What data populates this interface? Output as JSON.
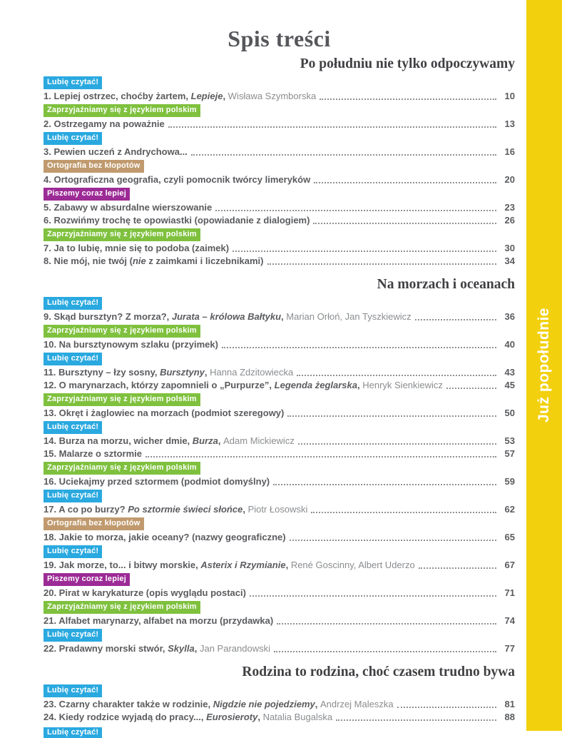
{
  "page": {
    "title": "Spis treści",
    "sidebar_label": "Już popołudnie",
    "band_color": "#f2d00e",
    "text_color": "#5a5b5e",
    "author_color": "#8a8c8f"
  },
  "tags": {
    "lubie": {
      "label": "Lubię czytać!",
      "color": "#2aa9e0"
    },
    "zaprz": {
      "label": "Zaprzyjaźniamy się z językiem polskim",
      "color": "#7fc13e"
    },
    "orto": {
      "label": "Ortografia bez kłopotów",
      "color": "#c09a6e"
    },
    "piszemy": {
      "label": "Piszemy coraz lepiej",
      "color": "#9c2b96"
    }
  },
  "bottom_partial_tag": "lubie",
  "sections": [
    {
      "heading": "Po południu nie tylko odpoczywamy",
      "entries": [
        {
          "tag": "lubie",
          "page": "10",
          "parts": [
            {
              "s": "b",
              "t": "1. Lepiej ostrzec, choćby żartem, "
            },
            {
              "s": "bi",
              "t": "Lepieje"
            },
            {
              "s": "b",
              "t": ", "
            },
            {
              "s": "r",
              "t": "Wisława Szymborska"
            }
          ]
        },
        {
          "tag": "zaprz",
          "page": "13",
          "parts": [
            {
              "s": "b",
              "t": "2. Ostrzegamy na poważnie"
            }
          ]
        },
        {
          "tag": "lubie",
          "page": "16",
          "parts": [
            {
              "s": "b",
              "t": "3. Pewien uczeń z Andrychowa..."
            }
          ]
        },
        {
          "tag": "orto",
          "page": "20",
          "parts": [
            {
              "s": "b",
              "t": "4. Ortograficzna geografia, czyli pomocnik twórcy limeryków"
            }
          ]
        },
        {
          "tag": "piszemy",
          "page": "23",
          "parts": [
            {
              "s": "b",
              "t": "5. Zabawy w absurdalne wierszowanie"
            }
          ]
        },
        {
          "tag": null,
          "page": "26",
          "parts": [
            {
              "s": "b",
              "t": "6. Rozwińmy trochę te opowiastki (opowiadanie z dialogiem)"
            }
          ]
        },
        {
          "tag": "zaprz",
          "page": "30",
          "parts": [
            {
              "s": "b",
              "t": "7. Ja to lubię, mnie się to podoba (zaimek)"
            }
          ]
        },
        {
          "tag": null,
          "page": "34",
          "parts": [
            {
              "s": "b",
              "t": "8. Nie mój, nie twój ("
            },
            {
              "s": "bi",
              "t": "nie"
            },
            {
              "s": "b",
              "t": " z zaimkami i liczebnikami)"
            }
          ]
        }
      ]
    },
    {
      "heading": "Na morzach i oceanach",
      "entries": [
        {
          "tag": "lubie",
          "page": "36",
          "parts": [
            {
              "s": "b",
              "t": "9. Skąd bursztyn? Z morza?, "
            },
            {
              "s": "bi",
              "t": "Jurata – królowa Bałtyku"
            },
            {
              "s": "b",
              "t": ", "
            },
            {
              "s": "r",
              "t": "Marian Orłoń, Jan Tyszkiewicz"
            }
          ]
        },
        {
          "tag": "zaprz",
          "page": "40",
          "parts": [
            {
              "s": "b",
              "t": "10. Na bursztynowym szlaku (przyimek)"
            }
          ]
        },
        {
          "tag": "lubie",
          "page": "43",
          "parts": [
            {
              "s": "b",
              "t": "11. Bursztyny – łzy sosny, "
            },
            {
              "s": "bi",
              "t": "Bursztyny"
            },
            {
              "s": "b",
              "t": ", "
            },
            {
              "s": "r",
              "t": "Hanna Zdzitowiecka"
            }
          ]
        },
        {
          "tag": null,
          "page": "45",
          "parts": [
            {
              "s": "b",
              "t": "12. O marynarzach, którzy zapomnieli o „Purpurze”, "
            },
            {
              "s": "bi",
              "t": "Legenda żeglarska"
            },
            {
              "s": "b",
              "t": ", "
            },
            {
              "s": "r",
              "t": "Henryk Sienkiewicz"
            }
          ]
        },
        {
          "tag": "zaprz",
          "page": "50",
          "parts": [
            {
              "s": "b",
              "t": "13. Okręt i żaglowiec na morzach (podmiot szeregowy)"
            }
          ]
        },
        {
          "tag": "lubie",
          "page": "53",
          "parts": [
            {
              "s": "b",
              "t": "14. Burza na morzu, wicher dmie, "
            },
            {
              "s": "bi",
              "t": "Burza"
            },
            {
              "s": "b",
              "t": ", "
            },
            {
              "s": "r",
              "t": "Adam Mickiewicz"
            }
          ]
        },
        {
          "tag": null,
          "page": "57",
          "parts": [
            {
              "s": "b",
              "t": "15. Malarze o sztormie"
            }
          ]
        },
        {
          "tag": "zaprz",
          "page": "59",
          "parts": [
            {
              "s": "b",
              "t": "16. Uciekajmy przed sztormem (podmiot domyślny)"
            }
          ]
        },
        {
          "tag": "lubie",
          "page": "62",
          "parts": [
            {
              "s": "b",
              "t": "17. A co po burzy? "
            },
            {
              "s": "bi",
              "t": "Po sztormie świeci słońce"
            },
            {
              "s": "b",
              "t": ", "
            },
            {
              "s": "r",
              "t": "Piotr Łosowski"
            }
          ]
        },
        {
          "tag": "orto",
          "page": "65",
          "parts": [
            {
              "s": "b",
              "t": "18. Jakie to morza, jakie oceany? (nazwy geograficzne)"
            }
          ]
        },
        {
          "tag": "lubie",
          "page": "67",
          "parts": [
            {
              "s": "b",
              "t": "19. Jak morze, to... i bitwy morskie, "
            },
            {
              "s": "bi",
              "t": "Asterix i Rzymianie"
            },
            {
              "s": "b",
              "t": ", "
            },
            {
              "s": "r",
              "t": "René Goscinny, Albert Uderzo"
            }
          ]
        },
        {
          "tag": "piszemy",
          "page": "71",
          "parts": [
            {
              "s": "b",
              "t": "20. Pirat w karykaturze (opis wyglądu postaci)"
            }
          ]
        },
        {
          "tag": "zaprz",
          "page": "74",
          "parts": [
            {
              "s": "b",
              "t": "21. Alfabet marynarzy, alfabet na morzu (przydawka)"
            }
          ]
        },
        {
          "tag": "lubie",
          "page": "77",
          "parts": [
            {
              "s": "b",
              "t": "22. Pradawny morski stwór, "
            },
            {
              "s": "bi",
              "t": "Skylla"
            },
            {
              "s": "b",
              "t": ", "
            },
            {
              "s": "r",
              "t": "Jan Parandowski"
            }
          ]
        }
      ]
    },
    {
      "heading": "Rodzina to rodzina, choć czasem trudno bywa",
      "entries": [
        {
          "tag": "lubie",
          "page": "81",
          "parts": [
            {
              "s": "b",
              "t": "23. Czarny charakter także w rodzinie, "
            },
            {
              "s": "bi",
              "t": "Nigdzie nie pojedziemy"
            },
            {
              "s": "b",
              "t": ", "
            },
            {
              "s": "r",
              "t": "Andrzej Maleszka"
            }
          ]
        },
        {
          "tag": null,
          "page": "88",
          "parts": [
            {
              "s": "b",
              "t": "24. Kiedy rodzice wyjadą do pracy..., "
            },
            {
              "s": "bi",
              "t": "Eurosieroty"
            },
            {
              "s": "b",
              "t": ", "
            },
            {
              "s": "r",
              "t": "Natalia Bugalska"
            }
          ]
        }
      ]
    }
  ]
}
